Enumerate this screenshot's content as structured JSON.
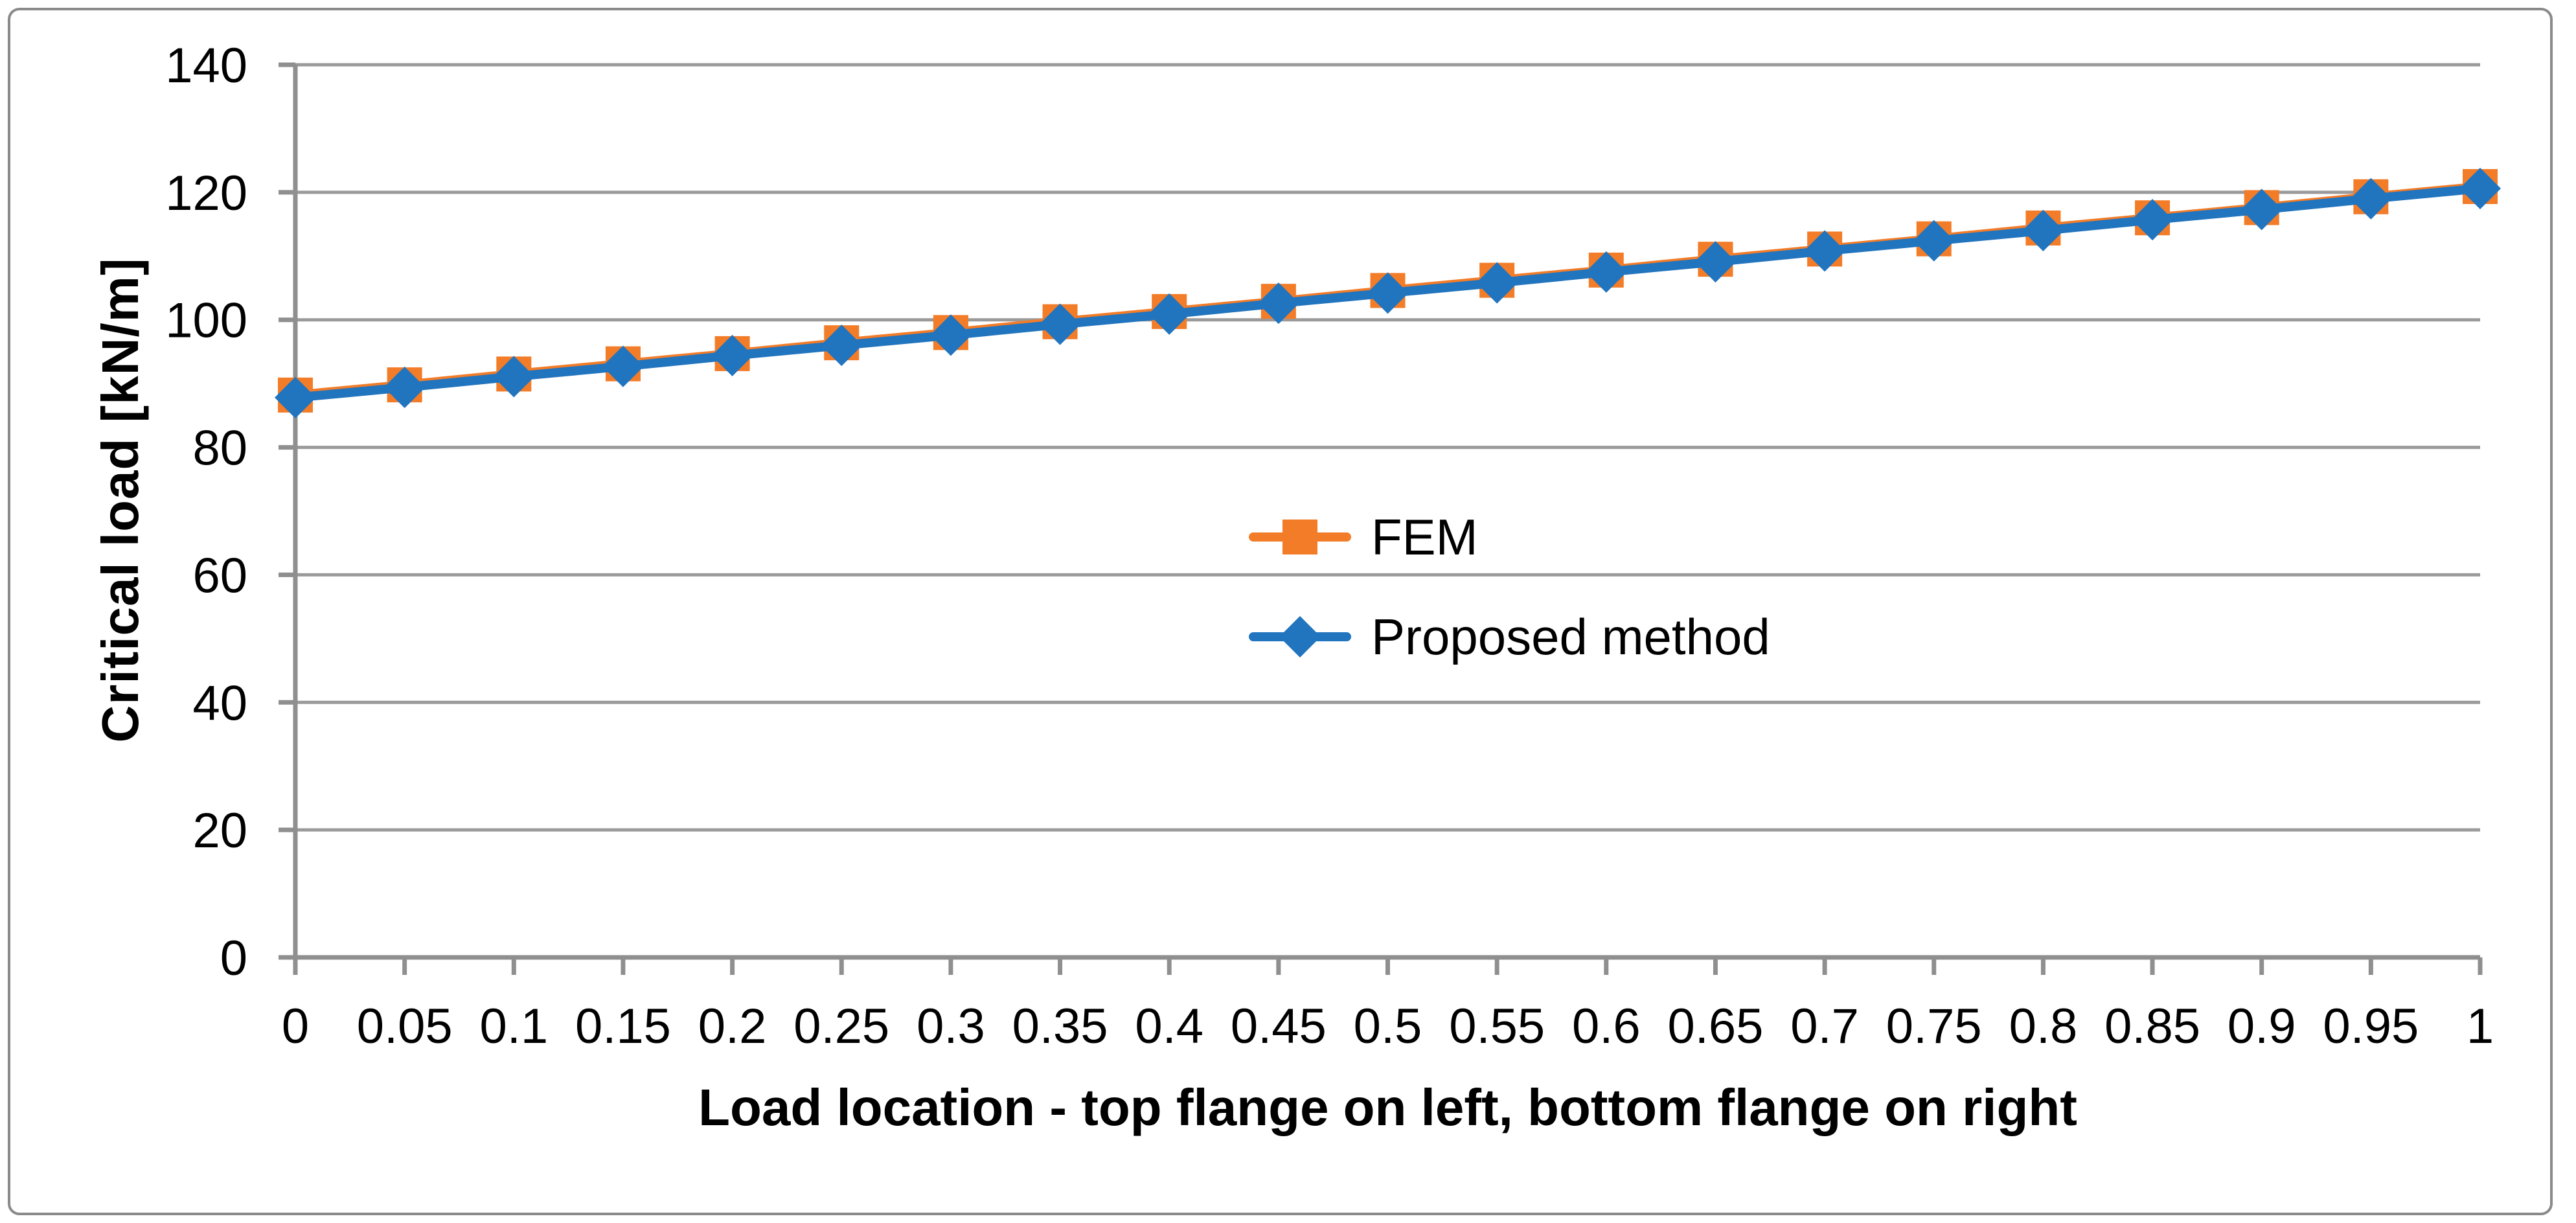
{
  "chart_data": {
    "type": "line",
    "title": "",
    "xlabel": "Load location - top flange on left, bottom flange on right",
    "ylabel": "Critical load [kN/m]",
    "x": [
      0,
      0.05,
      0.1,
      0.15,
      0.2,
      0.25,
      0.3,
      0.35,
      0.4,
      0.45,
      0.5,
      0.55,
      0.6,
      0.65,
      0.7,
      0.75,
      0.8,
      0.85,
      0.9,
      0.95,
      1
    ],
    "xtick_labels": [
      "0",
      "0.05",
      "0.1",
      "0.15",
      "0.2",
      "0.25",
      "0.3",
      "0.35",
      "0.4",
      "0.45",
      "0.5",
      "0.55",
      "0.6",
      "0.65",
      "0.7",
      "0.75",
      "0.8",
      "0.85",
      "0.9",
      "0.95",
      "1"
    ],
    "ytick_values": [
      0,
      20,
      40,
      60,
      80,
      100,
      120,
      140
    ],
    "ytick_labels": [
      "0",
      "20",
      "40",
      "60",
      "80",
      "100",
      "120",
      "140"
    ],
    "xlim": [
      0,
      1
    ],
    "ylim": [
      0,
      140
    ],
    "grid": "horizontal-only",
    "legend_position": "center-of-plot",
    "series": [
      {
        "name": "FEM",
        "color": "#F37C28",
        "marker": "square",
        "values": [
          88.2,
          89.8,
          91.5,
          93.1,
          94.7,
          96.4,
          98.0,
          99.7,
          101.3,
          102.9,
          104.6,
          106.2,
          107.8,
          109.5,
          111.1,
          112.7,
          114.4,
          116.0,
          117.6,
          119.3,
          120.9
        ]
      },
      {
        "name": "Proposed method",
        "color": "#2174BE",
        "marker": "diamond",
        "values": [
          87.8,
          89.4,
          91.1,
          92.7,
          94.4,
          96.0,
          97.6,
          99.3,
          100.9,
          102.6,
          104.2,
          105.8,
          107.5,
          109.1,
          110.8,
          112.4,
          114.0,
          115.7,
          117.3,
          119.0,
          120.6
        ]
      }
    ],
    "colors": {
      "axis": "#8f8f8f",
      "grid": "#9a9a9a",
      "border": "#8a8a8a",
      "text": "#000000"
    }
  }
}
